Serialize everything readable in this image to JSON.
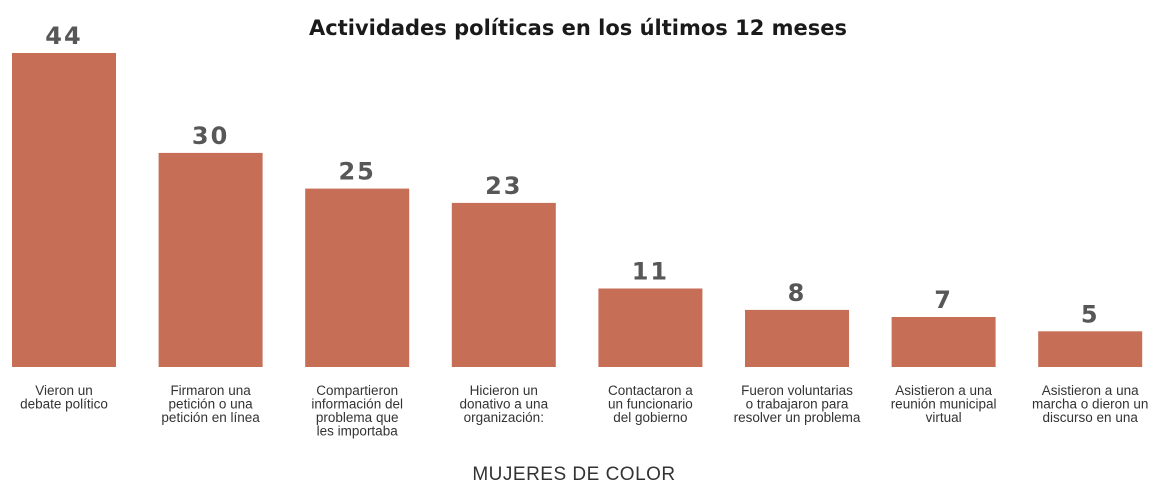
{
  "chart_data": {
    "type": "bar",
    "title": "Actividades políticas en los últimos 12 meses",
    "xlabel": "MUJERES DE COLOR",
    "ylabel": "",
    "ylim": [
      0,
      44
    ],
    "grid": false,
    "legend": "none",
    "bar_color": "#C66E56",
    "categories": [
      [
        "Vieron un",
        "debate político"
      ],
      [
        "Firmaron una",
        "petición o una",
        "petición en línea"
      ],
      [
        "Compartieron",
        "información del",
        "problema que",
        "les importaba"
      ],
      [
        "Hicieron un",
        "donativo a una",
        "organización:"
      ],
      [
        "Contactaron a",
        "un funcionario",
        "del gobierno"
      ],
      [
        "Fueron voluntarias",
        "o trabajaron para",
        "resolver un problema"
      ],
      [
        "Asistieron a una",
        "reunión municipal",
        "virtual"
      ],
      [
        "Asistieron a una",
        "marcha o dieron un",
        "discurso en una"
      ]
    ],
    "values": [
      44,
      30,
      25,
      23,
      11,
      8,
      7,
      5
    ]
  }
}
